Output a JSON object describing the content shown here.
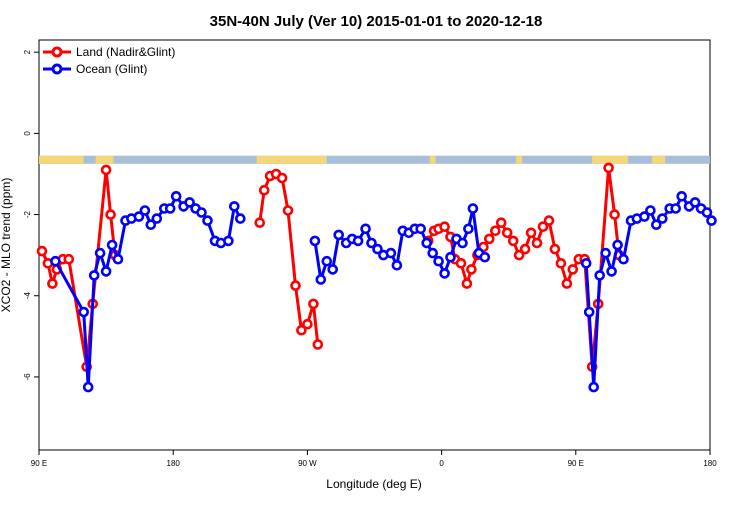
{
  "chart_data": {
    "type": "line",
    "title": "35N-40N July (Ver 10)   2015-01-01 to 2020-12-18",
    "xlabel": "Longitude (deg E)",
    "ylabel": "XCO2 - MLO trend (ppm)",
    "x_ticks": [
      {
        "value": 90,
        "label": "90 E"
      },
      {
        "value": 180,
        "label": "180"
      },
      {
        "value": 270,
        "label": "90 W"
      },
      {
        "value": 360,
        "label": "0"
      },
      {
        "value": 450,
        "label": "90 E"
      },
      {
        "value": 540,
        "label": "180"
      }
    ],
    "y_ticks": [
      2,
      0,
      -2,
      -4,
      -6
    ],
    "xlim": [
      90,
      540
    ],
    "ylim": [
      -7.8,
      2.3
    ],
    "legend_position": "top-left",
    "land_mask": {
      "y_range": [
        -0.55,
        -0.75
      ],
      "land_color": "#f5d77a",
      "ocean_color": "#a8bfdc",
      "land_intervals": [
        [
          90,
          120
        ],
        [
          128,
          140
        ],
        [
          236,
          283
        ],
        [
          352,
          356
        ],
        [
          410,
          414
        ],
        [
          461,
          485
        ],
        [
          501,
          510
        ]
      ]
    },
    "series": [
      {
        "name": "Land (Nadir&Glint)",
        "color": "#ff0000",
        "segments": [
          [
            [
              92,
              -2.9
            ],
            [
              96,
              -3.2
            ],
            [
              99,
              -3.7
            ],
            [
              102,
              -3.35
            ],
            [
              106,
              -3.1
            ],
            [
              110,
              -3.1
            ],
            [
              122,
              -5.75
            ],
            [
              126,
              -4.2
            ],
            [
              135,
              -0.9
            ],
            [
              138,
              -2.0
            ],
            [
              141,
              -3.0
            ]
          ],
          [
            [
              238,
              -2.2
            ],
            [
              241,
              -1.4
            ],
            [
              245,
              -1.05
            ],
            [
              249,
              -1.0
            ],
            [
              253,
              -1.1
            ],
            [
              257,
              -1.9
            ],
            [
              262,
              -3.75
            ],
            [
              266,
              -4.85
            ],
            [
              270,
              -4.7
            ],
            [
              274,
              -4.2
            ],
            [
              277,
              -5.2
            ]
          ],
          [
            [
              351,
              -2.65
            ],
            [
              355,
              -2.4
            ],
            [
              358,
              -2.35
            ],
            [
              362,
              -2.3
            ],
            [
              366,
              -2.55
            ],
            [
              369,
              -3.1
            ],
            [
              373,
              -3.2
            ],
            [
              377,
              -3.7
            ],
            [
              380,
              -3.35
            ],
            [
              384,
              -3.0
            ],
            [
              388,
              -2.8
            ],
            [
              392,
              -2.6
            ],
            [
              396,
              -2.4
            ],
            [
              400,
              -2.2
            ],
            [
              404,
              -2.45
            ],
            [
              408,
              -2.65
            ],
            [
              412,
              -3.0
            ],
            [
              416,
              -2.85
            ],
            [
              420,
              -2.45
            ],
            [
              424,
              -2.7
            ],
            [
              428,
              -2.3
            ],
            [
              432,
              -2.15
            ],
            [
              436,
              -2.85
            ],
            [
              440,
              -3.2
            ],
            [
              444,
              -3.7
            ],
            [
              448,
              -3.35
            ],
            [
              452,
              -3.1
            ],
            [
              456,
              -3.1
            ],
            [
              461,
              -5.75
            ],
            [
              465,
              -4.2
            ],
            [
              472,
              -0.85
            ],
            [
              476,
              -2.0
            ],
            [
              479,
              -3.0
            ]
          ]
        ]
      },
      {
        "name": "Ocean (Glint)",
        "color": "#0000ff",
        "segments": [
          [
            [
              101,
              -3.15
            ],
            [
              120,
              -4.4
            ],
            [
              123,
              -6.25
            ],
            [
              127,
              -3.5
            ],
            [
              131,
              -2.95
            ],
            [
              135,
              -3.4
            ],
            [
              139,
              -2.75
            ],
            [
              143,
              -3.1
            ],
            [
              148,
              -2.15
            ],
            [
              152,
              -2.1
            ],
            [
              157,
              -2.05
            ],
            [
              161,
              -1.9
            ],
            [
              165,
              -2.25
            ],
            [
              169,
              -2.1
            ],
            [
              174,
              -1.85
            ],
            [
              178,
              -1.85
            ],
            [
              182,
              -1.55
            ],
            [
              187,
              -1.8
            ],
            [
              191,
              -1.7
            ],
            [
              195,
              -1.85
            ],
            [
              199,
              -1.95
            ],
            [
              203,
              -2.15
            ],
            [
              208,
              -2.65
            ],
            [
              212,
              -2.7
            ],
            [
              217,
              -2.65
            ],
            [
              221,
              -1.8
            ],
            [
              225,
              -2.1
            ]
          ],
          [
            [
              275,
              -2.65
            ],
            [
              279,
              -3.6
            ],
            [
              283,
              -3.15
            ],
            [
              287,
              -3.35
            ],
            [
              291,
              -2.5
            ],
            [
              296,
              -2.7
            ],
            [
              300,
              -2.6
            ],
            [
              304,
              -2.65
            ],
            [
              309,
              -2.35
            ],
            [
              313,
              -2.7
            ],
            [
              317,
              -2.85
            ],
            [
              321,
              -3.0
            ],
            [
              326,
              -2.95
            ],
            [
              330,
              -3.25
            ],
            [
              334,
              -2.4
            ],
            [
              338,
              -2.45
            ],
            [
              342,
              -2.35
            ],
            [
              346,
              -2.35
            ],
            [
              350,
              -2.7
            ],
            [
              354,
              -2.95
            ],
            [
              358,
              -3.15
            ],
            [
              362,
              -3.45
            ],
            [
              366,
              -3.05
            ],
            [
              370,
              -2.6
            ],
            [
              374,
              -2.7
            ],
            [
              378,
              -2.35
            ],
            [
              381,
              -1.85
            ],
            [
              385,
              -2.95
            ],
            [
              389,
              -3.05
            ]
          ],
          [
            [
              457,
              -3.2
            ],
            [
              459,
              -4.4
            ],
            [
              462,
              -6.25
            ],
            [
              466,
              -3.5
            ],
            [
              470,
              -2.95
            ],
            [
              474,
              -3.4
            ],
            [
              478,
              -2.75
            ],
            [
              482,
              -3.1
            ],
            [
              487,
              -2.15
            ],
            [
              491,
              -2.1
            ],
            [
              496,
              -2.05
            ],
            [
              500,
              -1.9
            ],
            [
              504,
              -2.25
            ],
            [
              508,
              -2.1
            ],
            [
              513,
              -1.85
            ],
            [
              517,
              -1.85
            ],
            [
              521,
              -1.55
            ],
            [
              526,
              -1.8
            ],
            [
              530,
              -1.7
            ],
            [
              534,
              -1.85
            ],
            [
              538,
              -1.95
            ],
            [
              541,
              -2.15
            ]
          ]
        ]
      }
    ]
  }
}
